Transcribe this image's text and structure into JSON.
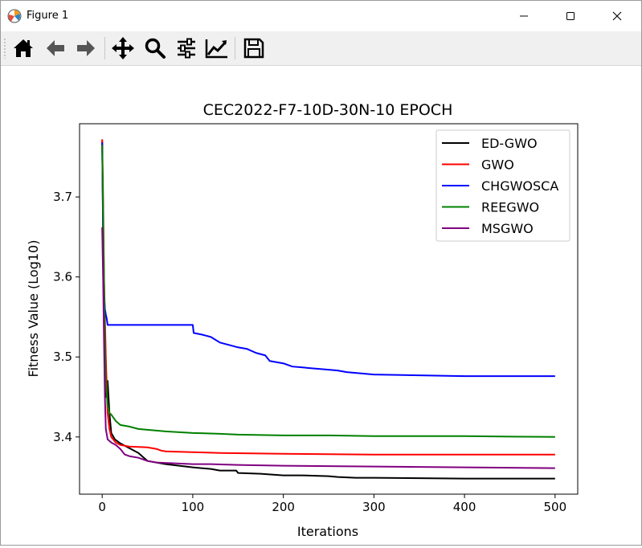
{
  "window": {
    "title": "Figure 1"
  },
  "toolbar": {
    "buttons": [
      {
        "name": "home",
        "icon": "home-icon"
      },
      {
        "name": "back",
        "icon": "arrow-left-icon"
      },
      {
        "name": "forward",
        "icon": "arrow-right-icon"
      },
      {
        "name": "pan",
        "icon": "move-icon"
      },
      {
        "name": "zoom",
        "icon": "magnifier-icon"
      },
      {
        "name": "configure-subplots",
        "icon": "sliders-icon"
      },
      {
        "name": "edit-axis",
        "icon": "line-chart-icon"
      },
      {
        "name": "save",
        "icon": "floppy-disk-icon"
      }
    ]
  },
  "chart_data": {
    "type": "line",
    "title": "CEC2022-F7-10D-30N-10 EPOCH",
    "xlabel": "Iterations",
    "ylabel": "Fitness Value (Log10)",
    "xlim": [
      -25,
      525
    ],
    "ylim": [
      3.3285,
      3.7915
    ],
    "xticks": [
      0,
      100,
      200,
      300,
      400,
      500
    ],
    "yticks": [
      3.4,
      3.5,
      3.6,
      3.7
    ],
    "xtick_labels": [
      "0",
      "100",
      "200",
      "300",
      "400",
      "500"
    ],
    "ytick_labels": [
      "3.4",
      "3.5",
      "3.6",
      "3.7"
    ],
    "legend_position": "top-right",
    "series": [
      {
        "name": "ED-GWO",
        "color": "#000000",
        "x": [
          0,
          2,
          4,
          5,
          6,
          8,
          10,
          14,
          20,
          30,
          40,
          45,
          50,
          70,
          100,
          120,
          130,
          148,
          150,
          175,
          200,
          220,
          250,
          260,
          280,
          300,
          400,
          500
        ],
        "y": [
          3.77,
          3.56,
          3.45,
          3.465,
          3.47,
          3.43,
          3.405,
          3.397,
          3.392,
          3.386,
          3.38,
          3.375,
          3.37,
          3.366,
          3.362,
          3.36,
          3.358,
          3.358,
          3.355,
          3.354,
          3.352,
          3.352,
          3.351,
          3.35,
          3.349,
          3.349,
          3.348,
          3.348
        ]
      },
      {
        "name": "GWO",
        "color": "#ff0000",
        "x": [
          0,
          1,
          2,
          4,
          6,
          8,
          10,
          15,
          20,
          30,
          50,
          60,
          65,
          70,
          100,
          130,
          200,
          300,
          400,
          500
        ],
        "y": [
          3.772,
          3.7,
          3.6,
          3.5,
          3.43,
          3.41,
          3.4,
          3.393,
          3.39,
          3.388,
          3.387,
          3.385,
          3.383,
          3.382,
          3.381,
          3.38,
          3.379,
          3.378,
          3.378,
          3.378
        ]
      },
      {
        "name": "CHGWOSCA",
        "color": "#0000ff",
        "x": [
          0,
          1,
          2,
          3,
          4,
          5,
          6,
          8,
          10,
          20,
          50,
          100,
          101,
          110,
          120,
          130,
          140,
          150,
          160,
          170,
          180,
          185,
          200,
          210,
          220,
          250,
          260,
          270,
          280,
          300,
          350,
          400,
          500
        ],
        "y": [
          3.768,
          3.65,
          3.58,
          3.56,
          3.553,
          3.548,
          3.54,
          3.54,
          3.54,
          3.54,
          3.54,
          3.54,
          3.53,
          3.528,
          3.525,
          3.518,
          3.515,
          3.512,
          3.51,
          3.505,
          3.502,
          3.495,
          3.492,
          3.488,
          3.487,
          3.484,
          3.483,
          3.481,
          3.48,
          3.478,
          3.477,
          3.476,
          3.476
        ]
      },
      {
        "name": "REEGWO",
        "color": "#008000",
        "x": [
          0,
          1,
          2,
          3,
          4,
          6,
          8,
          10,
          15,
          20,
          30,
          40,
          50,
          70,
          100,
          130,
          150,
          200,
          250,
          300,
          350,
          400,
          500
        ],
        "y": [
          3.765,
          3.68,
          3.6,
          3.52,
          3.47,
          3.44,
          3.43,
          3.428,
          3.42,
          3.415,
          3.413,
          3.41,
          3.409,
          3.407,
          3.405,
          3.404,
          3.403,
          3.402,
          3.402,
          3.401,
          3.401,
          3.401,
          3.4
        ]
      },
      {
        "name": "MSGWO",
        "color": "#800080",
        "x": [
          0,
          1,
          2,
          3,
          4,
          6,
          8,
          10,
          15,
          20,
          25,
          30,
          40,
          50,
          60,
          80,
          100,
          120,
          150,
          200,
          300,
          400,
          500
        ],
        "y": [
          3.662,
          3.6,
          3.52,
          3.45,
          3.41,
          3.397,
          3.395,
          3.393,
          3.39,
          3.385,
          3.378,
          3.376,
          3.374,
          3.37,
          3.368,
          3.367,
          3.366,
          3.366,
          3.365,
          3.364,
          3.363,
          3.362,
          3.361
        ]
      }
    ]
  }
}
